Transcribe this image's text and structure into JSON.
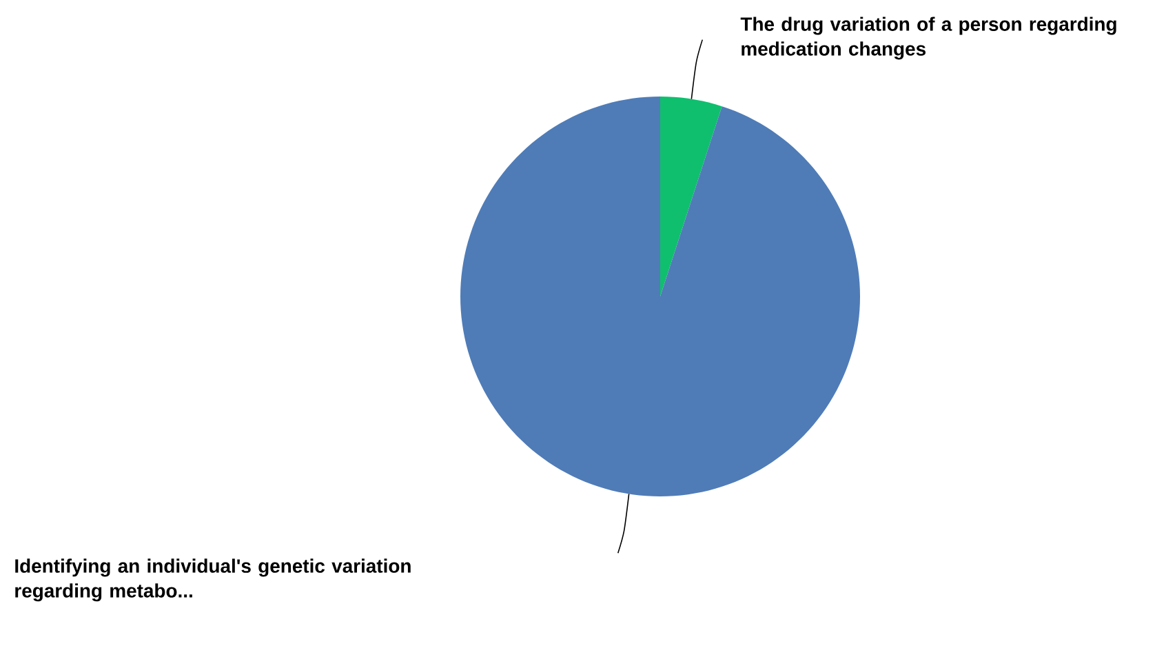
{
  "chart_data": {
    "type": "pie",
    "categories": [
      "The drug variation of a person regarding medication changes",
      "Identifying an individual's genetic variation regarding metabo..."
    ],
    "values": [
      5,
      95
    ],
    "colors": [
      "#0fbf6e",
      "#4f7cb7"
    ]
  }
}
